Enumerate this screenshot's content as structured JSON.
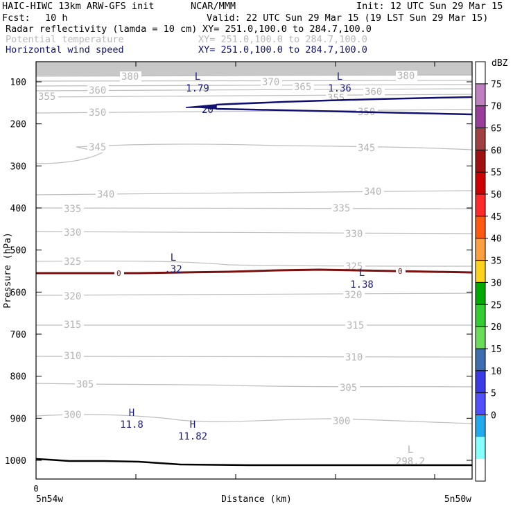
{
  "header": {
    "model": "HAIC-HIWC 13km ARW-GFS init",
    "org": "NCAR/MMM",
    "init": "Init: 12 UTC Sun 29 Mar 15",
    "fcst_label": "Fcst:",
    "fcst_value": "10 h",
    "valid": "Valid: 22 UTC Sun 29 Mar 15 (19 LST Sun 29 Mar 15)",
    "fields": [
      {
        "name": "Radar reflectivity (lamda = 10 cm)",
        "xy": "XY= 251.0,100.0 to 284.7,100.0",
        "color": "#000000"
      },
      {
        "name": "Potential temperature",
        "xy": "XY= 251.0,100.0 to 284.7,100.0",
        "color": "#b8b8b8"
      },
      {
        "name": "Horizontal wind speed",
        "xy": "XY= 251.0,100.0 to 284.7,100.0",
        "color": "#101070"
      }
    ]
  },
  "chart_data": {
    "type": "cross-section",
    "ylabel": "Pressure (hPa)",
    "xlabel": "Distance (km)",
    "y_ticks": [
      100,
      200,
      300,
      400,
      500,
      600,
      700,
      800,
      900,
      1000
    ],
    "x_ticks": [
      "0"
    ],
    "left_location": "5n54w",
    "right_location": "5n50w",
    "theta_contours": [
      {
        "value": 300,
        "labels": [
          "300",
          "300"
        ]
      },
      {
        "value": 305,
        "labels": [
          "305",
          "305"
        ]
      },
      {
        "value": 310,
        "labels": [
          "310",
          "310"
        ]
      },
      {
        "value": 315,
        "labels": [
          "315",
          "315"
        ]
      },
      {
        "value": 320,
        "labels": [
          "320",
          "320"
        ]
      },
      {
        "value": 325,
        "labels": [
          "325",
          "325"
        ]
      },
      {
        "value": 330,
        "labels": [
          "330",
          "330"
        ]
      },
      {
        "value": 335,
        "labels": [
          "335",
          "335"
        ]
      },
      {
        "value": 340,
        "labels": [
          "340",
          "340"
        ]
      },
      {
        "value": 345,
        "labels": [
          "345",
          "345"
        ]
      },
      {
        "value": 350,
        "labels": [
          "350",
          "350"
        ]
      },
      {
        "value": 355,
        "labels": [
          "355",
          "355"
        ]
      },
      {
        "value": 360,
        "labels": [
          "360",
          "360"
        ]
      },
      {
        "value": 365,
        "labels": [
          "365"
        ]
      },
      {
        "value": 370,
        "labels": [
          "370"
        ]
      },
      {
        "value": 380,
        "labels": [
          "380",
          "380"
        ]
      }
    ],
    "wind_contours": [
      {
        "value": 20,
        "label": "20"
      }
    ],
    "reflectivity_contours": [
      {
        "value": 0,
        "label": "0"
      }
    ],
    "extrema": [
      {
        "type": "L",
        "value": "1.79",
        "field": "wind"
      },
      {
        "type": "L",
        "value": "1.36",
        "field": "wind"
      },
      {
        "type": "L",
        "value": ".32",
        "field": "wind"
      },
      {
        "type": "L",
        "value": "1.38",
        "field": "wind"
      },
      {
        "type": "H",
        "value": "11.8",
        "field": "wind"
      },
      {
        "type": "H",
        "value": "11.82",
        "field": "wind"
      },
      {
        "type": "L",
        "value": "298.2",
        "field": "theta"
      }
    ],
    "colorbar": {
      "unit": "dBZ",
      "levels": [
        "75",
        "70",
        "65",
        "60",
        "55",
        "50",
        "45",
        "40",
        "35",
        "30",
        "25",
        "20",
        "15",
        "10",
        "5",
        "0"
      ],
      "colors": [
        "#ffffff",
        "#c080c0",
        "#9a3d9a",
        "#a04040",
        "#a01010",
        "#cc0000",
        "#ff2a2a",
        "#ff5a10",
        "#ffa040",
        "#ffd21e",
        "#00aa00",
        "#33cc33",
        "#6adc5a",
        "#3c6eb0",
        "#3a3ae6",
        "#5050ff",
        "#22aaee",
        "#88ffff",
        "#ffffff"
      ]
    }
  }
}
